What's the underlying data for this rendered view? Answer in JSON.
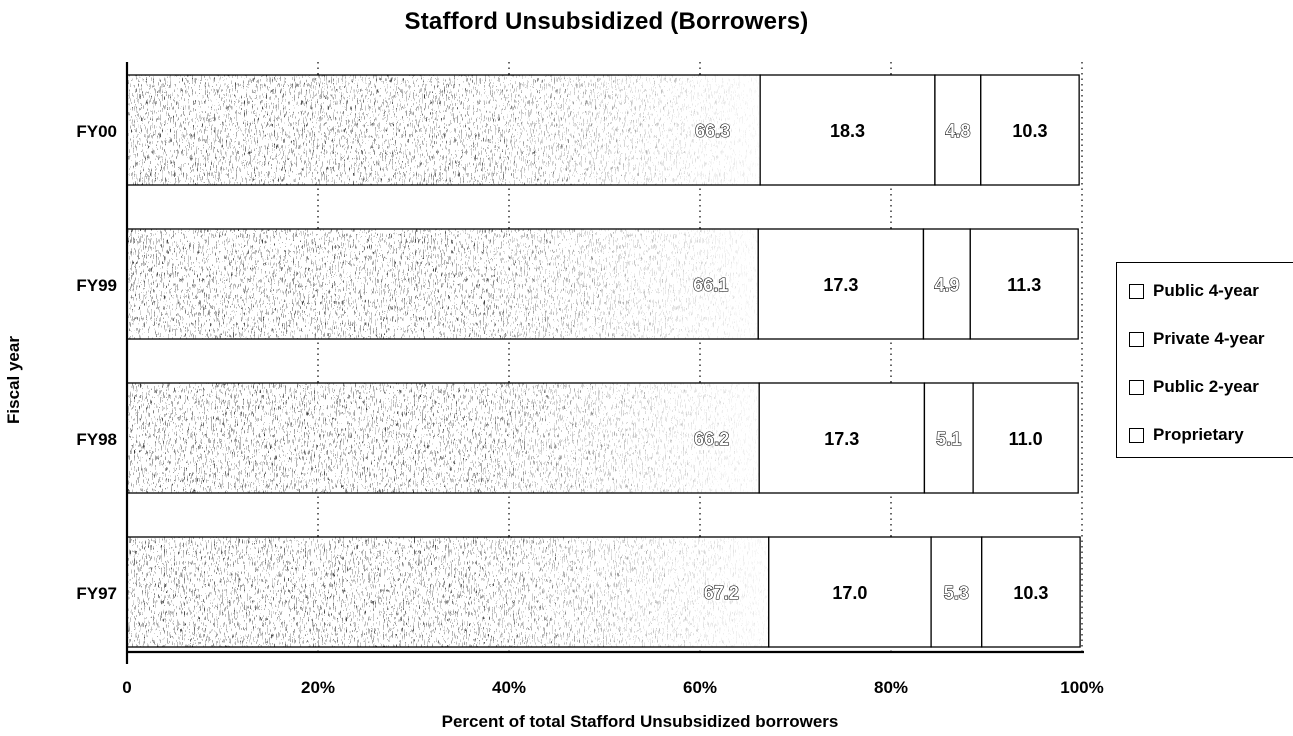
{
  "chart_data": {
    "type": "bar",
    "orientation": "horizontal",
    "stacked": true,
    "title": "Stafford Unsubsidized (Borrowers)",
    "xlabel": "Percent of total Stafford Unsubsidized borrowers",
    "ylabel": "Fiscal year",
    "categories": [
      "FY00",
      "FY99",
      "FY98",
      "FY97"
    ],
    "series": [
      {
        "name": "Public 4-year",
        "values": [
          66.3,
          66.1,
          66.2,
          67.2
        ],
        "labels": [
          "66.3",
          "66.1",
          "66.2",
          "67.2"
        ],
        "fill": "stipple"
      },
      {
        "name": "Private 4-year",
        "values": [
          18.3,
          17.3,
          17.3,
          17.0
        ],
        "labels": [
          "18.3",
          "17.3",
          "17.3",
          "17.0"
        ],
        "fill": "white"
      },
      {
        "name": "Public 2-year",
        "values": [
          4.8,
          4.9,
          5.1,
          5.3
        ],
        "labels": [
          "4.8",
          "4.9",
          "5.1",
          "5.3"
        ],
        "fill": "white"
      },
      {
        "name": "Proprietary",
        "values": [
          10.3,
          11.3,
          11.0,
          10.3
        ],
        "labels": [
          "10.3",
          "11.3",
          "11.0",
          "10.3"
        ],
        "fill": "white"
      }
    ],
    "xlim": [
      0,
      100
    ],
    "xticks": [
      0,
      20,
      40,
      60,
      80,
      100
    ],
    "xtick_labels": [
      "0",
      "20%",
      "40%",
      "60%",
      "80%",
      "100%"
    ],
    "grid": "vertical dotted",
    "legend_position": "right"
  }
}
